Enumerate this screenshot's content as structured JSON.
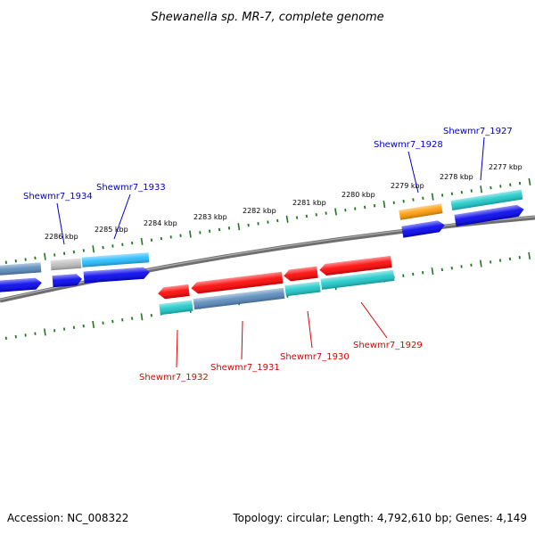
{
  "title": "Shewanella sp. MR-7, complete genome",
  "footer": {
    "accession": "Accession: NC_008322",
    "info": "Topology: circular; Length: 4,792,610 bp; Genes: 4,149"
  },
  "ticks": {
    "labels": [
      "2286 kbp",
      "2285 kbp",
      "2284 kbp",
      "2283 kbp",
      "2282 kbp",
      "2281 kbp",
      "2280 kbp",
      "2279 kbp",
      "2278 kbp",
      "2277 kbp"
    ]
  },
  "gene_labels": {
    "forward": [
      "Shewmr7_1934",
      "Shewmr7_1933",
      "Shewmr7_1928",
      "Shewmr7_1927"
    ],
    "reverse": [
      "Shewmr7_1932",
      "Shewmr7_1931",
      "Shewmr7_1930",
      "Shewmr7_1929"
    ]
  },
  "colors": {
    "forward_label": "#0000cc",
    "reverse_label": "#dd0000",
    "tick": "#1f7a1f",
    "backbone": "#808080",
    "red": "#ff0000",
    "blue": "#0000ee",
    "cyan": "#19c8c8",
    "lightblue": "#22bbff",
    "steelblue": "#5588bb",
    "gray": "#bbbbbb",
    "orange": "#ff9900"
  }
}
